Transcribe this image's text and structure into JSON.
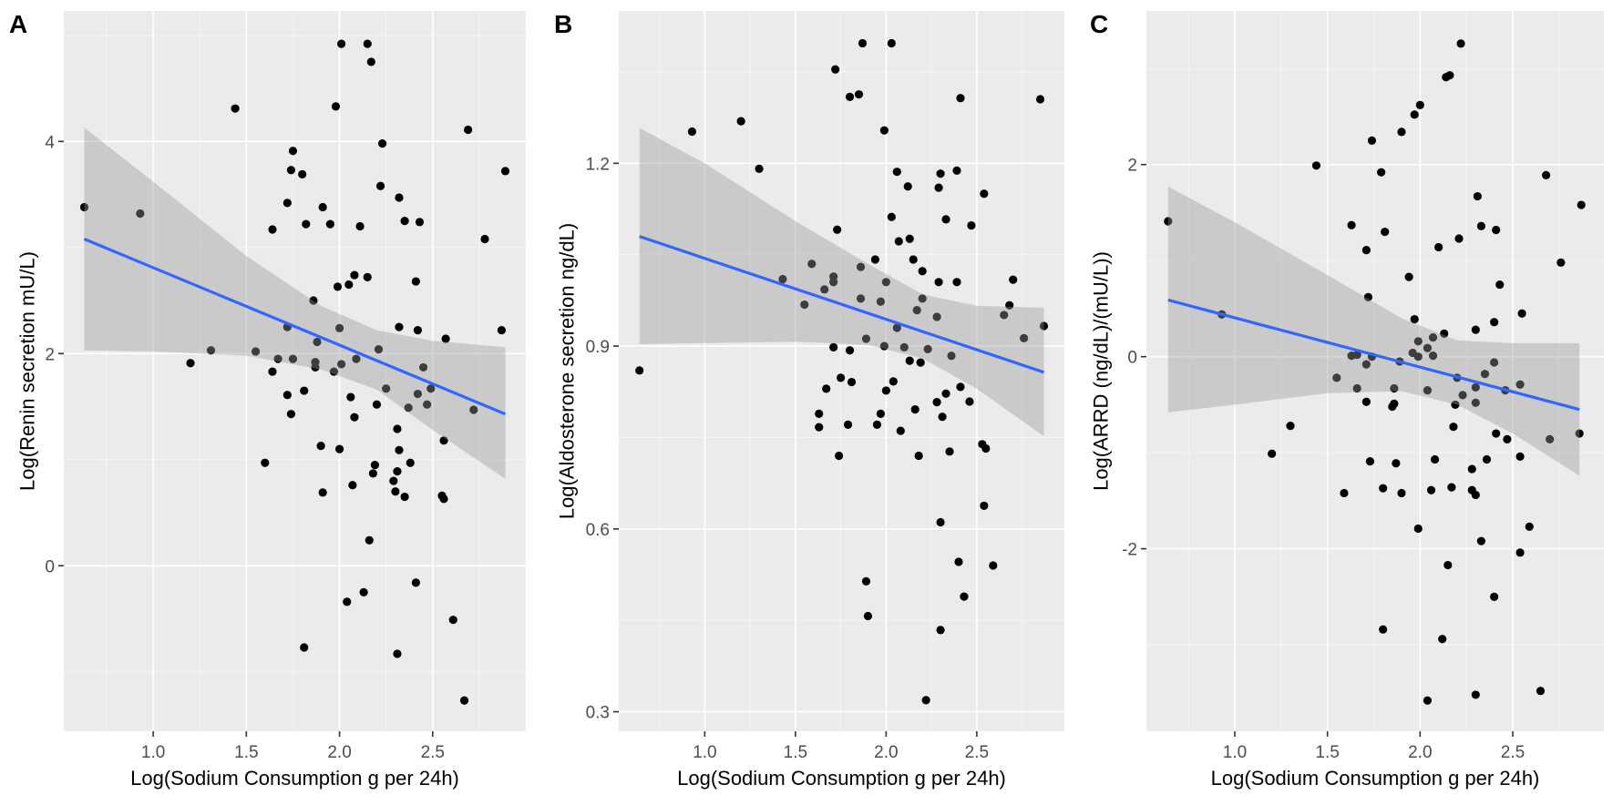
{
  "chart_data": [
    {
      "type": "scatter",
      "panel_letter": "A",
      "title": "",
      "xlabel": "Log(Sodium Consumption g per 24h)",
      "ylabel": "Log(Renin secretion mU/L)",
      "xlim": [
        0.52,
        3.0
      ],
      "ylim": [
        -1.56,
        5.23
      ],
      "xticks": [
        1.0,
        1.5,
        2.0,
        2.5
      ],
      "xtick_labels": [
        "1.0",
        "1.5",
        "2.0",
        "2.5"
      ],
      "yticks": [
        0,
        2,
        4
      ],
      "ytick_labels": [
        "0",
        "2",
        "4"
      ],
      "x_minor_step": 0.25,
      "y_minor_step": 1,
      "grid": true,
      "point_color": "#000000",
      "line_color": "#3366ff",
      "fit_line": {
        "x": [
          0.63,
          2.89
        ],
        "y": [
          3.08,
          1.43
        ]
      },
      "ci_band": {
        "x": [
          0.63,
          1.0,
          1.5,
          1.9,
          2.2,
          2.5,
          2.89
        ],
        "upper": [
          4.13,
          3.62,
          2.92,
          2.45,
          2.22,
          2.12,
          2.06
        ],
        "lower": [
          2.03,
          2.02,
          1.98,
          1.85,
          1.66,
          1.28,
          0.82
        ]
      },
      "points": [
        [
          2.01,
          4.92
        ],
        [
          2.15,
          4.92
        ],
        [
          2.17,
          4.75
        ],
        [
          1.44,
          4.31
        ],
        [
          1.98,
          4.33
        ],
        [
          2.69,
          4.11
        ],
        [
          2.23,
          3.98
        ],
        [
          1.75,
          3.91
        ],
        [
          1.74,
          3.73
        ],
        [
          1.8,
          3.69
        ],
        [
          2.89,
          3.72
        ],
        [
          2.22,
          3.58
        ],
        [
          2.32,
          3.47
        ],
        [
          1.72,
          3.42
        ],
        [
          1.91,
          3.38
        ],
        [
          0.63,
          3.38
        ],
        [
          0.93,
          3.32
        ],
        [
          2.35,
          3.25
        ],
        [
          2.43,
          3.24
        ],
        [
          1.82,
          3.22
        ],
        [
          1.95,
          3.22
        ],
        [
          2.11,
          3.2
        ],
        [
          1.64,
          3.17
        ],
        [
          2.78,
          3.08
        ],
        [
          2.08,
          2.74
        ],
        [
          2.15,
          2.72
        ],
        [
          2.05,
          2.65
        ],
        [
          1.99,
          2.63
        ],
        [
          2.41,
          2.68
        ],
        [
          1.86,
          2.5
        ],
        [
          1.72,
          2.25
        ],
        [
          2.0,
          2.24
        ],
        [
          2.32,
          2.25
        ],
        [
          2.42,
          2.22
        ],
        [
          2.87,
          2.22
        ],
        [
          2.57,
          2.14
        ],
        [
          1.88,
          2.11
        ],
        [
          1.31,
          2.03
        ],
        [
          1.55,
          2.02
        ],
        [
          2.21,
          2.04
        ],
        [
          2.09,
          1.95
        ],
        [
          1.67,
          1.95
        ],
        [
          1.75,
          1.95
        ],
        [
          1.87,
          1.92
        ],
        [
          1.2,
          1.91
        ],
        [
          2.01,
          1.9
        ],
        [
          2.45,
          1.87
        ],
        [
          1.64,
          1.83
        ],
        [
          1.97,
          1.83
        ],
        [
          1.87,
          1.87
        ],
        [
          2.25,
          1.67
        ],
        [
          2.42,
          1.62
        ],
        [
          2.49,
          1.67
        ],
        [
          2.47,
          1.52
        ],
        [
          2.37,
          1.49
        ],
        [
          2.72,
          1.47
        ],
        [
          1.72,
          1.61
        ],
        [
          1.81,
          1.65
        ],
        [
          2.06,
          1.59
        ],
        [
          2.2,
          1.52
        ],
        [
          1.74,
          1.43
        ],
        [
          2.08,
          1.4
        ],
        [
          2.31,
          1.29
        ],
        [
          2.56,
          1.18
        ],
        [
          1.9,
          1.13
        ],
        [
          2.0,
          1.1
        ],
        [
          2.32,
          1.09
        ],
        [
          1.6,
          0.97
        ],
        [
          2.19,
          0.95
        ],
        [
          2.38,
          0.97
        ],
        [
          2.18,
          0.87
        ],
        [
          2.31,
          0.89
        ],
        [
          2.29,
          0.8
        ],
        [
          2.07,
          0.76
        ],
        [
          1.91,
          0.69
        ],
        [
          2.3,
          0.7
        ],
        [
          2.35,
          0.65
        ],
        [
          2.55,
          0.66
        ],
        [
          2.56,
          0.63
        ],
        [
          2.16,
          0.24
        ],
        [
          2.41,
          -0.16
        ],
        [
          2.13,
          -0.25
        ],
        [
          2.04,
          -0.34
        ],
        [
          2.61,
          -0.51
        ],
        [
          1.81,
          -0.77
        ],
        [
          2.31,
          -0.83
        ],
        [
          2.67,
          -1.27
        ]
      ]
    },
    {
      "type": "scatter",
      "panel_letter": "B",
      "title": "",
      "xlabel": "Log(Sodium Consumption g per 24h)",
      "ylabel": "Log(Aldosterone secretion ng/dL)",
      "xlim": [
        0.526,
        2.983
      ],
      "ylim": [
        0.268,
        1.45
      ],
      "xticks": [
        1.0,
        1.5,
        2.0,
        2.5
      ],
      "xtick_labels": [
        "1.0",
        "1.5",
        "2.0",
        "2.5"
      ],
      "yticks": [
        0.3,
        0.6,
        0.9,
        1.2
      ],
      "ytick_labels": [
        "0.3",
        "0.6",
        "0.9",
        "1.2"
      ],
      "x_minor_step": 0.25,
      "y_minor_step": 0.15,
      "grid": true,
      "point_color": "#000000",
      "line_color": "#3366ff",
      "fit_line": {
        "x": [
          0.64,
          2.87
        ],
        "y": [
          1.08,
          0.857
        ]
      },
      "ci_band": {
        "x": [
          0.64,
          1.0,
          1.5,
          1.9,
          2.2,
          2.5,
          2.87
        ],
        "upper": [
          1.258,
          1.2,
          1.105,
          1.035,
          0.985,
          0.966,
          0.963
        ],
        "lower": [
          0.903,
          0.905,
          0.907,
          0.902,
          0.88,
          0.83,
          0.752
        ]
      },
      "points": [
        [
          1.87,
          1.397
        ],
        [
          2.03,
          1.397
        ],
        [
          1.72,
          1.354
        ],
        [
          1.8,
          1.309
        ],
        [
          1.85,
          1.313
        ],
        [
          2.41,
          1.307
        ],
        [
          2.85,
          1.305
        ],
        [
          1.2,
          1.269
        ],
        [
          0.93,
          1.252
        ],
        [
          1.99,
          1.254
        ],
        [
          1.3,
          1.191
        ],
        [
          2.06,
          1.186
        ],
        [
          2.3,
          1.183
        ],
        [
          2.39,
          1.188
        ],
        [
          2.12,
          1.162
        ],
        [
          2.29,
          1.16
        ],
        [
          2.54,
          1.15
        ],
        [
          2.03,
          1.112
        ],
        [
          2.33,
          1.108
        ],
        [
          2.47,
          1.098
        ],
        [
          1.73,
          1.091
        ],
        [
          2.07,
          1.072
        ],
        [
          2.13,
          1.076
        ],
        [
          1.94,
          1.042
        ],
        [
          2.15,
          1.042
        ],
        [
          1.86,
          1.03
        ],
        [
          2.2,
          1.023
        ],
        [
          1.59,
          1.035
        ],
        [
          1.43,
          1.01
        ],
        [
          1.71,
          1.014
        ],
        [
          1.71,
          1.005
        ],
        [
          2.0,
          1.005
        ],
        [
          2.29,
          1.005
        ],
        [
          2.39,
          1.005
        ],
        [
          2.7,
          1.009
        ],
        [
          1.66,
          0.993
        ],
        [
          1.86,
          0.978
        ],
        [
          1.97,
          0.973
        ],
        [
          2.2,
          0.978
        ],
        [
          1.55,
          0.968
        ],
        [
          2.68,
          0.967
        ],
        [
          2.17,
          0.959
        ],
        [
          2.28,
          0.948
        ],
        [
          2.65,
          0.951
        ],
        [
          2.87,
          0.933
        ],
        [
          2.06,
          0.93
        ],
        [
          2.76,
          0.913
        ],
        [
          1.89,
          0.912
        ],
        [
          1.99,
          0.9
        ],
        [
          1.71,
          0.898
        ],
        [
          1.8,
          0.893
        ],
        [
          2.1,
          0.898
        ],
        [
          2.23,
          0.895
        ],
        [
          2.36,
          0.884
        ],
        [
          2.13,
          0.876
        ],
        [
          2.19,
          0.873
        ],
        [
          0.64,
          0.86
        ],
        [
          1.75,
          0.848
        ],
        [
          1.81,
          0.841
        ],
        [
          2.04,
          0.842
        ],
        [
          1.67,
          0.83
        ],
        [
          2.0,
          0.827
        ],
        [
          2.41,
          0.833
        ],
        [
          2.33,
          0.822
        ],
        [
          2.28,
          0.808
        ],
        [
          2.46,
          0.809
        ],
        [
          1.63,
          0.789
        ],
        [
          1.63,
          0.767
        ],
        [
          1.97,
          0.789
        ],
        [
          2.16,
          0.796
        ],
        [
          2.31,
          0.784
        ],
        [
          1.79,
          0.771
        ],
        [
          1.95,
          0.771
        ],
        [
          2.08,
          0.761
        ],
        [
          2.53,
          0.739
        ],
        [
          2.55,
          0.732
        ],
        [
          1.74,
          0.72
        ],
        [
          2.18,
          0.72
        ],
        [
          2.35,
          0.727
        ],
        [
          2.54,
          0.638
        ],
        [
          2.3,
          0.611
        ],
        [
          2.4,
          0.546
        ],
        [
          2.59,
          0.54
        ],
        [
          1.89,
          0.514
        ],
        [
          2.43,
          0.489
        ],
        [
          1.9,
          0.457
        ],
        [
          2.3,
          0.434
        ],
        [
          2.22,
          0.319
        ]
      ]
    },
    {
      "type": "scatter",
      "panel_letter": "C",
      "title": "",
      "xlabel": "Log(Sodium Consumption g per 24h)",
      "ylabel": "Log(ARRD (ng/dL)/(mU/L))",
      "xlim": [
        0.523,
        2.992
      ],
      "ylim": [
        -3.9,
        3.6
      ],
      "xticks": [
        1.0,
        1.5,
        2.0,
        2.5
      ],
      "xtick_labels": [
        "1.0",
        "1.5",
        "2.0",
        "2.5"
      ],
      "yticks": [
        -2,
        0,
        2
      ],
      "ytick_labels": [
        "-2",
        "0",
        "2"
      ],
      "x_minor_step": 0.25,
      "y_minor_step": 1,
      "grid": true,
      "point_color": "#000000",
      "line_color": "#3366ff",
      "fit_line": {
        "x": [
          0.64,
          2.86
        ],
        "y": [
          0.59,
          -0.55
        ]
      },
      "ci_band": {
        "x": [
          0.64,
          1.0,
          1.5,
          1.9,
          2.2,
          2.5,
          2.86
        ],
        "upper": [
          1.77,
          1.4,
          0.85,
          0.4,
          0.17,
          0.14,
          0.14
        ],
        "lower": [
          -0.58,
          -0.5,
          -0.38,
          -0.36,
          -0.5,
          -0.8,
          -1.24
        ]
      },
      "points": [
        [
          2.22,
          3.26
        ],
        [
          2.14,
          2.91
        ],
        [
          2.16,
          2.93
        ],
        [
          2.0,
          2.62
        ],
        [
          1.97,
          2.52
        ],
        [
          1.9,
          2.34
        ],
        [
          1.74,
          2.25
        ],
        [
          1.44,
          1.99
        ],
        [
          1.79,
          1.92
        ],
        [
          2.68,
          1.89
        ],
        [
          2.31,
          1.67
        ],
        [
          2.87,
          1.58
        ],
        [
          0.64,
          1.41
        ],
        [
          1.63,
          1.37
        ],
        [
          2.33,
          1.36
        ],
        [
          2.41,
          1.32
        ],
        [
          1.81,
          1.3
        ],
        [
          2.21,
          1.23
        ],
        [
          1.71,
          1.11
        ],
        [
          2.1,
          1.14
        ],
        [
          2.76,
          0.98
        ],
        [
          1.94,
          0.83
        ],
        [
          2.43,
          0.75
        ],
        [
          1.72,
          0.62
        ],
        [
          2.55,
          0.45
        ],
        [
          1.97,
          0.39
        ],
        [
          2.4,
          0.36
        ],
        [
          2.3,
          0.28
        ],
        [
          2.13,
          0.24
        ],
        [
          2.07,
          0.2
        ],
        [
          0.93,
          0.44
        ],
        [
          1.99,
          0.16
        ],
        [
          2.04,
          0.09
        ],
        [
          1.96,
          0.04
        ],
        [
          2.07,
          0.01
        ],
        [
          1.99,
          0.0
        ],
        [
          1.63,
          0.01
        ],
        [
          1.66,
          0.02
        ],
        [
          1.74,
          0.0
        ],
        [
          1.89,
          -0.05
        ],
        [
          1.71,
          -0.08
        ],
        [
          2.4,
          -0.06
        ],
        [
          2.35,
          -0.18
        ],
        [
          1.55,
          -0.22
        ],
        [
          2.2,
          -0.22
        ],
        [
          2.54,
          -0.29
        ],
        [
          1.66,
          -0.33
        ],
        [
          1.86,
          -0.33
        ],
        [
          2.04,
          -0.35
        ],
        [
          2.3,
          -0.32
        ],
        [
          2.46,
          -0.35
        ],
        [
          2.23,
          -0.4
        ],
        [
          2.3,
          -0.48
        ],
        [
          2.19,
          -0.5
        ],
        [
          1.71,
          -0.47
        ],
        [
          1.85,
          -0.52
        ],
        [
          1.86,
          -0.49
        ],
        [
          1.3,
          -0.72
        ],
        [
          2.18,
          -0.73
        ],
        [
          2.41,
          -0.8
        ],
        [
          2.47,
          -0.86
        ],
        [
          2.7,
          -0.86
        ],
        [
          2.86,
          -0.8
        ],
        [
          1.2,
          -1.01
        ],
        [
          1.73,
          -1.09
        ],
        [
          1.87,
          -1.11
        ],
        [
          2.08,
          -1.07
        ],
        [
          2.36,
          -1.07
        ],
        [
          2.54,
          -1.04
        ],
        [
          2.28,
          -1.17
        ],
        [
          1.59,
          -1.42
        ],
        [
          1.8,
          -1.37
        ],
        [
          1.9,
          -1.42
        ],
        [
          2.06,
          -1.39
        ],
        [
          2.17,
          -1.36
        ],
        [
          2.28,
          -1.39
        ],
        [
          2.3,
          -1.44
        ],
        [
          1.99,
          -1.79
        ],
        [
          2.59,
          -1.77
        ],
        [
          2.33,
          -1.92
        ],
        [
          2.54,
          -2.04
        ],
        [
          2.15,
          -2.17
        ],
        [
          2.4,
          -2.5
        ],
        [
          1.8,
          -2.84
        ],
        [
          2.12,
          -2.94
        ],
        [
          2.65,
          -3.48
        ],
        [
          2.3,
          -3.52
        ],
        [
          2.04,
          -3.58
        ]
      ]
    }
  ]
}
